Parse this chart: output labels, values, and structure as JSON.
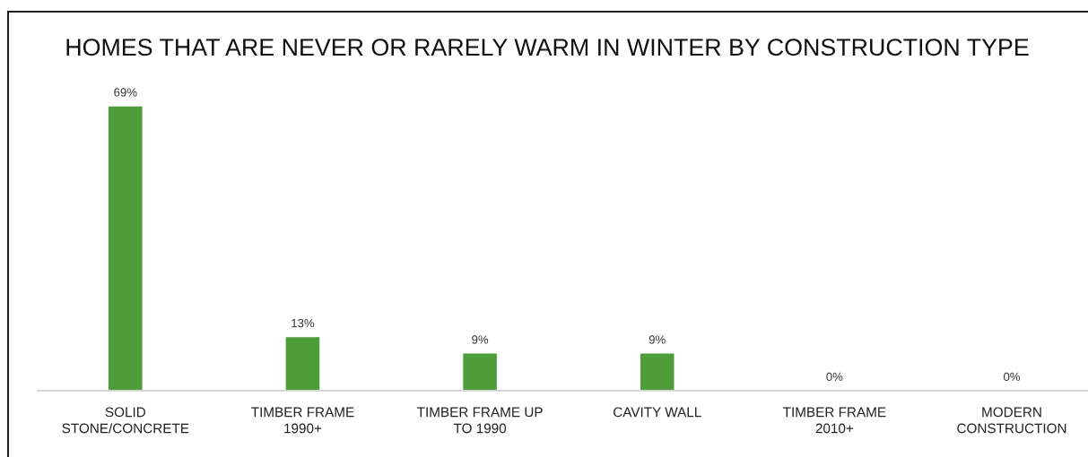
{
  "chart_data": {
    "type": "bar",
    "title": "HOMES THAT ARE NEVER OR RARELY WARM IN WINTER BY CONSTRUCTION TYPE",
    "categories": [
      "SOLID\nSTONE/CONCRETE",
      "TIMBER FRAME\n1990+",
      "TIMBER FRAME UP\nTO 1990",
      "CAVITY WALL",
      "TIMBER FRAME\n2010+",
      "MODERN\nCONSTRUCTION"
    ],
    "values": [
      69,
      13,
      9,
      9,
      0,
      0
    ],
    "value_labels": [
      "69%",
      "13%",
      "9%",
      "9%",
      "0%",
      "0%"
    ],
    "color": "#4f9d3a",
    "tick_labels": "x"
  }
}
